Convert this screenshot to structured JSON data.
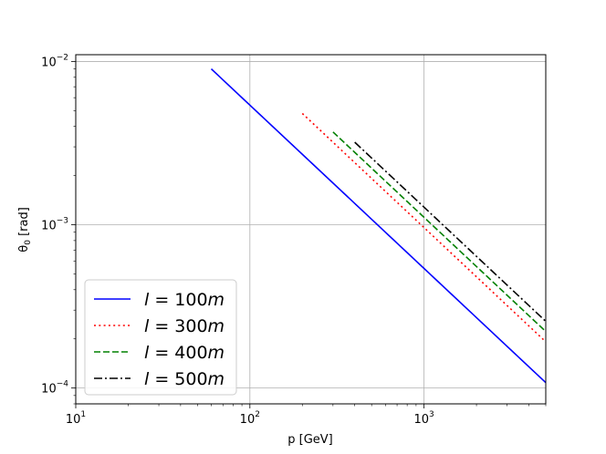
{
  "chart_data": {
    "type": "line",
    "xlabel": "p [GeV]",
    "ylabel_symbol": "θ",
    "ylabel_sub": "0",
    "ylabel_unit": " [rad]",
    "xscale": "log",
    "yscale": "log",
    "xlim": [
      10,
      5000
    ],
    "ylim": [
      8e-05,
      0.011
    ],
    "xticks": [
      {
        "value": 10,
        "base": "10",
        "exp": "1"
      },
      {
        "value": 100,
        "base": "10",
        "exp": "2"
      },
      {
        "value": 1000,
        "base": "10",
        "exp": "3"
      }
    ],
    "yticks": [
      {
        "value": 0.0001,
        "base": "10",
        "exp": "−4"
      },
      {
        "value": 0.001,
        "base": "10",
        "exp": "−3"
      },
      {
        "value": 0.01,
        "base": "10",
        "exp": "−2"
      }
    ],
    "grid": true,
    "legend_position": "bottom-left",
    "series": [
      {
        "name_var": "l",
        "name_value": "100",
        "name_unit": "m",
        "color": "#0000ff",
        "style": "solid",
        "x": [
          60,
          5000
        ],
        "y": [
          0.009,
          0.000108
        ]
      },
      {
        "name_var": "l",
        "name_value": "300",
        "name_unit": "m",
        "color": "#ff0000",
        "style": "dotted",
        "x": [
          200,
          5000
        ],
        "y": [
          0.0048,
          0.000192
        ]
      },
      {
        "name_var": "l",
        "name_value": "400",
        "name_unit": "m",
        "color": "#008000",
        "style": "dashed",
        "x": [
          300,
          5000
        ],
        "y": [
          0.0037,
          0.000222
        ]
      },
      {
        "name_var": "l",
        "name_value": "500",
        "name_unit": "m",
        "color": "#000000",
        "style": "dashdot",
        "x": [
          400,
          5000
        ],
        "y": [
          0.0032,
          0.000256
        ]
      }
    ]
  }
}
